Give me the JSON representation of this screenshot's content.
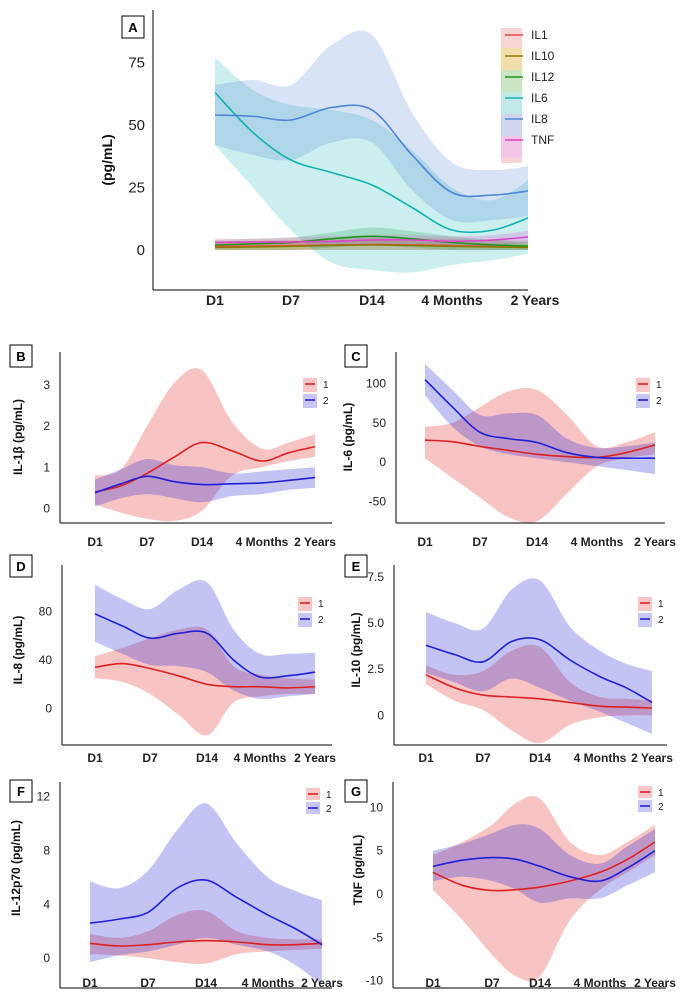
{
  "chart_data": [
    {
      "panel": "A",
      "type": "line",
      "ylabel": "(pg/mL)",
      "categories": [
        "D1",
        "D7",
        "D14",
        "4 Months",
        "2 Years"
      ],
      "yticks": [
        0,
        25,
        50,
        75
      ],
      "ylim": [
        -14,
        86
      ],
      "legend": "top-right",
      "series": [
        {
          "name": "IL1",
          "color": "#e8504a",
          "x": [
            0,
            0.5,
            1,
            1.5,
            2,
            2.5,
            3,
            3.5,
            4
          ],
          "y": [
            1.5,
            1.6,
            1.8,
            2.0,
            2.2,
            2.1,
            1.8,
            1.5,
            1.2
          ],
          "lower": [
            0,
            0,
            0,
            0,
            0,
            0,
            0,
            0,
            0
          ],
          "upper": [
            3.5,
            3.6,
            4,
            4.5,
            5,
            4.8,
            4.5,
            4,
            3.5
          ]
        },
        {
          "name": "IL10",
          "color": "#8c7a00",
          "x": [
            0,
            0.5,
            1,
            1.5,
            2,
            2.5,
            3,
            3.5,
            4
          ],
          "y": [
            1.0,
            1.2,
            1.5,
            1.8,
            2.0,
            1.8,
            1.5,
            1.2,
            1.0
          ],
          "lower": [
            0,
            0,
            0,
            0,
            0,
            0,
            0,
            0,
            0
          ],
          "upper": [
            2.5,
            2.7,
            3,
            3.5,
            3.8,
            3.5,
            3,
            2.8,
            2.5
          ]
        },
        {
          "name": "IL12",
          "color": "#1a9a1a",
          "x": [
            0,
            0.5,
            1,
            1.5,
            2,
            2.5,
            3,
            3.5,
            4
          ],
          "y": [
            2.0,
            2.5,
            3.0,
            4.5,
            5.5,
            4.5,
            3.0,
            2.0,
            1.5
          ],
          "lower": [
            0,
            0,
            0,
            1,
            2,
            1,
            0,
            0,
            0
          ],
          "upper": [
            4,
            4.5,
            5,
            7,
            9,
            7.5,
            5.5,
            4,
            3
          ]
        },
        {
          "name": "IL6",
          "color": "#11b3b0",
          "x": [
            0,
            0.5,
            1,
            1.5,
            2,
            2.5,
            3,
            3.5,
            4
          ],
          "y": [
            63,
            47,
            36,
            31,
            26,
            17,
            8,
            8,
            14
          ],
          "lower": [
            42,
            25,
            8,
            -5,
            -8,
            -9,
            -6,
            -4,
            -1
          ],
          "upper": [
            77,
            64,
            58,
            56,
            52,
            40,
            25,
            20,
            30
          ]
        },
        {
          "name": "IL8",
          "color": "#4f86d8",
          "x": [
            0,
            0.5,
            1,
            1.5,
            2,
            2.5,
            3,
            3.5,
            4
          ],
          "y": [
            54,
            53.5,
            52,
            57,
            56,
            38,
            23,
            22,
            24
          ],
          "lower": [
            42,
            38,
            36,
            43,
            43,
            24,
            12,
            12,
            14
          ],
          "upper": [
            66,
            68,
            66,
            82,
            86,
            55,
            35,
            32,
            34
          ]
        },
        {
          "name": "TNF",
          "color": "#e040c8",
          "x": [
            0,
            0.5,
            1,
            1.5,
            2,
            2.5,
            3,
            3.5,
            4
          ],
          "y": [
            3.0,
            3.2,
            3.2,
            3.5,
            4.0,
            4.0,
            3.5,
            4.0,
            5.5
          ],
          "lower": [
            1.5,
            1.5,
            1.5,
            1.5,
            2,
            2,
            1.5,
            2,
            3
          ],
          "upper": [
            4.5,
            4.5,
            5,
            5.5,
            6,
            6,
            5.5,
            6,
            8
          ]
        }
      ]
    },
    {
      "panel": "B",
      "type": "line",
      "ylabel": "IL-1β (pg/mL)",
      "categories": [
        "D1",
        "D7",
        "D14",
        "4 Months",
        "2 Years"
      ],
      "yticks": [
        0,
        1,
        2,
        3
      ],
      "ylim": [
        -0.4,
        3.6
      ],
      "series": [
        {
          "name": "1",
          "color": "#e02020",
          "x": [
            0,
            0.5,
            1,
            1.5,
            2,
            2.5,
            3,
            3.5,
            4
          ],
          "y": [
            0.4,
            0.55,
            0.85,
            1.25,
            1.6,
            1.4,
            1.15,
            1.35,
            1.5
          ],
          "lower": [
            0.1,
            -0.1,
            -0.25,
            -0.3,
            -0.05,
            0.8,
            1.0,
            1.15,
            1.25
          ],
          "upper": [
            0.8,
            0.95,
            2.0,
            3.05,
            3.35,
            2.1,
            1.45,
            1.6,
            1.8
          ]
        },
        {
          "name": "2",
          "color": "#2020d8",
          "x": [
            0,
            0.5,
            1,
            1.5,
            2,
            2.5,
            3,
            3.5,
            4
          ],
          "y": [
            0.38,
            0.6,
            0.78,
            0.65,
            0.58,
            0.6,
            0.62,
            0.68,
            0.75
          ],
          "lower": [
            0.05,
            0.25,
            0.35,
            0.25,
            0.15,
            0.3,
            0.35,
            0.45,
            0.5
          ],
          "upper": [
            0.7,
            0.95,
            1.2,
            1.05,
            1.0,
            0.85,
            0.9,
            0.95,
            1.0
          ]
        }
      ]
    },
    {
      "panel": "C",
      "type": "line",
      "ylabel": "IL-6 (pg/mL)",
      "categories": [
        "D1",
        "D7",
        "D14",
        "4 Months",
        "2 Years"
      ],
      "yticks": [
        -50,
        0,
        50,
        100
      ],
      "ylim": [
        -80,
        130
      ],
      "series": [
        {
          "name": "1",
          "color": "#e02020",
          "x": [
            0,
            0.5,
            1,
            1.5,
            2,
            2.5,
            3,
            3.5,
            4
          ],
          "y": [
            28,
            26,
            20,
            15,
            10,
            7,
            6,
            12,
            22
          ],
          "lower": [
            5,
            -20,
            -45,
            -70,
            -75,
            -40,
            -5,
            5,
            10
          ],
          "upper": [
            45,
            50,
            70,
            90,
            92,
            60,
            20,
            25,
            38
          ]
        },
        {
          "name": "2",
          "color": "#2020d8",
          "x": [
            0,
            0.5,
            1,
            1.5,
            2,
            2.5,
            3,
            3.5,
            4
          ],
          "y": [
            105,
            70,
            38,
            30,
            25,
            12,
            6,
            5,
            5
          ],
          "lower": [
            85,
            45,
            20,
            10,
            5,
            0,
            -5,
            -10,
            -15
          ],
          "upper": [
            125,
            92,
            60,
            62,
            60,
            30,
            18,
            20,
            25
          ]
        }
      ]
    },
    {
      "panel": "D",
      "type": "line",
      "ylabel": "IL-8 (pg/mL)",
      "categories": [
        "D1",
        "D7",
        "D14",
        "4 Months",
        "2 Years"
      ],
      "yticks": [
        0,
        40,
        80
      ],
      "ylim": [
        -30,
        110
      ],
      "series": [
        {
          "name": "1",
          "color": "#e02020",
          "x": [
            0,
            0.5,
            1,
            1.5,
            2,
            2.5,
            3,
            3.5,
            4
          ],
          "y": [
            34,
            37,
            33,
            27,
            20,
            18,
            18,
            17,
            18
          ],
          "lower": [
            25,
            22,
            12,
            -5,
            -22,
            5,
            10,
            12,
            12
          ],
          "upper": [
            43,
            50,
            58,
            65,
            65,
            35,
            28,
            25,
            24
          ]
        },
        {
          "name": "2",
          "color": "#2020d8",
          "x": [
            0,
            0.5,
            1,
            1.5,
            2,
            2.5,
            3,
            3.5,
            4
          ],
          "y": [
            78,
            68,
            58,
            62,
            62,
            40,
            26,
            27,
            30
          ],
          "lower": [
            55,
            45,
            36,
            35,
            30,
            15,
            8,
            10,
            12
          ],
          "upper": [
            102,
            90,
            82,
            98,
            104,
            65,
            45,
            45,
            46
          ]
        }
      ]
    },
    {
      "panel": "E",
      "type": "line",
      "ylabel": "IL-10 (pg/mL)",
      "categories": [
        "D1",
        "D7",
        "D14",
        "4 Months",
        "2 Years"
      ],
      "yticks": [
        0,
        2.5,
        5.0,
        7.5
      ],
      "yticklabels": [
        "0",
        "2.5",
        "5.0",
        "7.5"
      ],
      "ylim": [
        -1.6,
        7.6
      ],
      "series": [
        {
          "name": "1",
          "color": "#e02020",
          "x": [
            0,
            0.5,
            1,
            1.5,
            2,
            2.5,
            3,
            3.5,
            4
          ],
          "y": [
            2.2,
            1.5,
            1.1,
            1.0,
            0.9,
            0.7,
            0.5,
            0.45,
            0.4
          ],
          "lower": [
            1.7,
            0.8,
            0.3,
            -0.8,
            -1.5,
            -0.5,
            -0.1,
            0.0,
            0.0
          ],
          "upper": [
            2.7,
            2.2,
            2.4,
            3.5,
            3.7,
            1.8,
            1.0,
            0.9,
            0.8
          ]
        },
        {
          "name": "2",
          "color": "#2020d8",
          "x": [
            0,
            0.5,
            1,
            1.5,
            2,
            2.5,
            3,
            3.5,
            4
          ],
          "y": [
            3.8,
            3.3,
            2.9,
            4.0,
            4.1,
            3.0,
            2.1,
            1.5,
            0.7
          ],
          "lower": [
            2.3,
            1.8,
            1.3,
            2.0,
            1.5,
            0.8,
            0.2,
            -0.4,
            -1.0
          ],
          "upper": [
            5.6,
            5.0,
            4.7,
            6.8,
            7.3,
            4.8,
            3.5,
            2.8,
            2.4
          ]
        }
      ]
    },
    {
      "panel": "F",
      "type": "line",
      "ylabel": "IL-12p70 (pg/mL)",
      "categories": [
        "D1",
        "D7",
        "D14",
        "4 Months",
        "2 Years"
      ],
      "yticks": [
        0,
        4,
        8,
        12
      ],
      "ylim": [
        -2,
        12.5
      ],
      "series": [
        {
          "name": "1",
          "color": "#e02020",
          "x": [
            0,
            0.5,
            1,
            1.5,
            2,
            2.5,
            3,
            3.5,
            4
          ],
          "y": [
            1.1,
            0.9,
            1.0,
            1.2,
            1.3,
            1.2,
            1.0,
            1.0,
            1.1
          ],
          "lower": [
            0.3,
            0.2,
            0.0,
            -0.3,
            -0.4,
            0.3,
            0.5,
            0.6,
            0.7
          ],
          "upper": [
            1.8,
            1.5,
            2.0,
            3.2,
            3.5,
            2.0,
            1.5,
            1.4,
            1.4
          ]
        },
        {
          "name": "2",
          "color": "#2020d8",
          "x": [
            0,
            0.5,
            1,
            1.5,
            2,
            2.5,
            3,
            3.5,
            4
          ],
          "y": [
            2.6,
            2.9,
            3.4,
            5.2,
            5.8,
            4.5,
            3.2,
            2.2,
            1.0
          ],
          "lower": [
            -0.3,
            0.2,
            0.5,
            1.0,
            1.5,
            1.0,
            0.5,
            -0.5,
            -2.0
          ],
          "upper": [
            5.7,
            5.2,
            6.5,
            9.5,
            11.5,
            8.5,
            6.0,
            5.0,
            4.3
          ]
        }
      ]
    },
    {
      "panel": "G",
      "type": "line",
      "ylabel": "TNF (pg/mL)",
      "categories": [
        "D1",
        "D7",
        "D14",
        "4 Months",
        "2 Years"
      ],
      "yticks": [
        -10,
        -5,
        0,
        5,
        10
      ],
      "ylim": [
        -10.5,
        12
      ],
      "series": [
        {
          "name": "1",
          "color": "#e02020",
          "x": [
            0,
            0.5,
            1,
            1.5,
            2,
            2.5,
            3,
            3.5,
            4
          ],
          "y": [
            2.5,
            1.0,
            0.4,
            0.5,
            0.8,
            1.5,
            2.5,
            4.0,
            6.0
          ],
          "lower": [
            0.5,
            -3.0,
            -7.0,
            -9.5,
            -9.5,
            -3.0,
            0.5,
            2.5,
            4.5
          ],
          "upper": [
            4.5,
            6.0,
            8.0,
            10.5,
            11.0,
            6.0,
            4.5,
            6.0,
            8.0
          ]
        },
        {
          "name": "2",
          "color": "#2020d8",
          "x": [
            0,
            0.5,
            1,
            1.5,
            2,
            2.5,
            3,
            3.5,
            4
          ],
          "y": [
            3.2,
            3.9,
            4.2,
            4.0,
            3.2,
            2.0,
            1.5,
            3.0,
            5.0
          ],
          "lower": [
            1.5,
            2.0,
            1.5,
            0.5,
            -1.0,
            -0.5,
            -0.5,
            1.0,
            2.5
          ],
          "upper": [
            5.0,
            5.8,
            7.0,
            8.0,
            7.5,
            4.5,
            3.5,
            5.5,
            7.5
          ]
        }
      ]
    }
  ]
}
